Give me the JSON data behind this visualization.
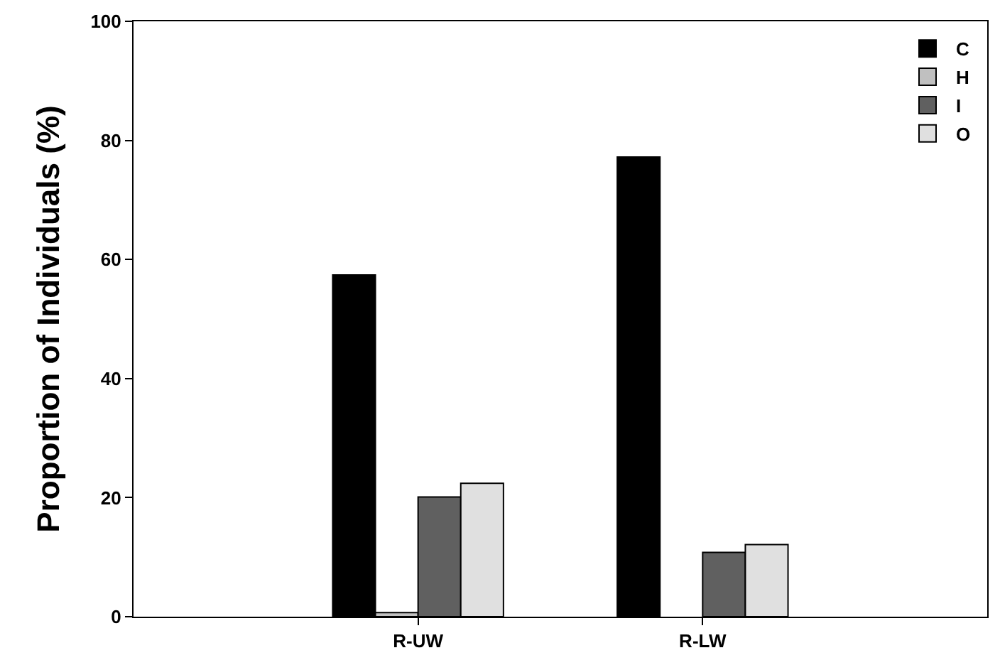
{
  "chart_data": {
    "type": "bar",
    "ylabel": "Proportion of Individuals (%)",
    "categories": [
      "R-UW",
      "R-LW"
    ],
    "series": [
      {
        "name": "C",
        "color": "#000000",
        "values": [
          57.4,
          77.2
        ]
      },
      {
        "name": "H",
        "color": "#c0c0c0",
        "values": [
          0.7,
          null
        ]
      },
      {
        "name": "I",
        "color": "#606060",
        "values": [
          20.1,
          10.8
        ]
      },
      {
        "name": "O",
        "color": "#e0e0e0",
        "values": [
          22.4,
          12.1
        ]
      }
    ],
    "ylim": [
      0,
      100
    ],
    "yticks": [
      0,
      20,
      40,
      60,
      80,
      100
    ],
    "legend": "top right"
  }
}
